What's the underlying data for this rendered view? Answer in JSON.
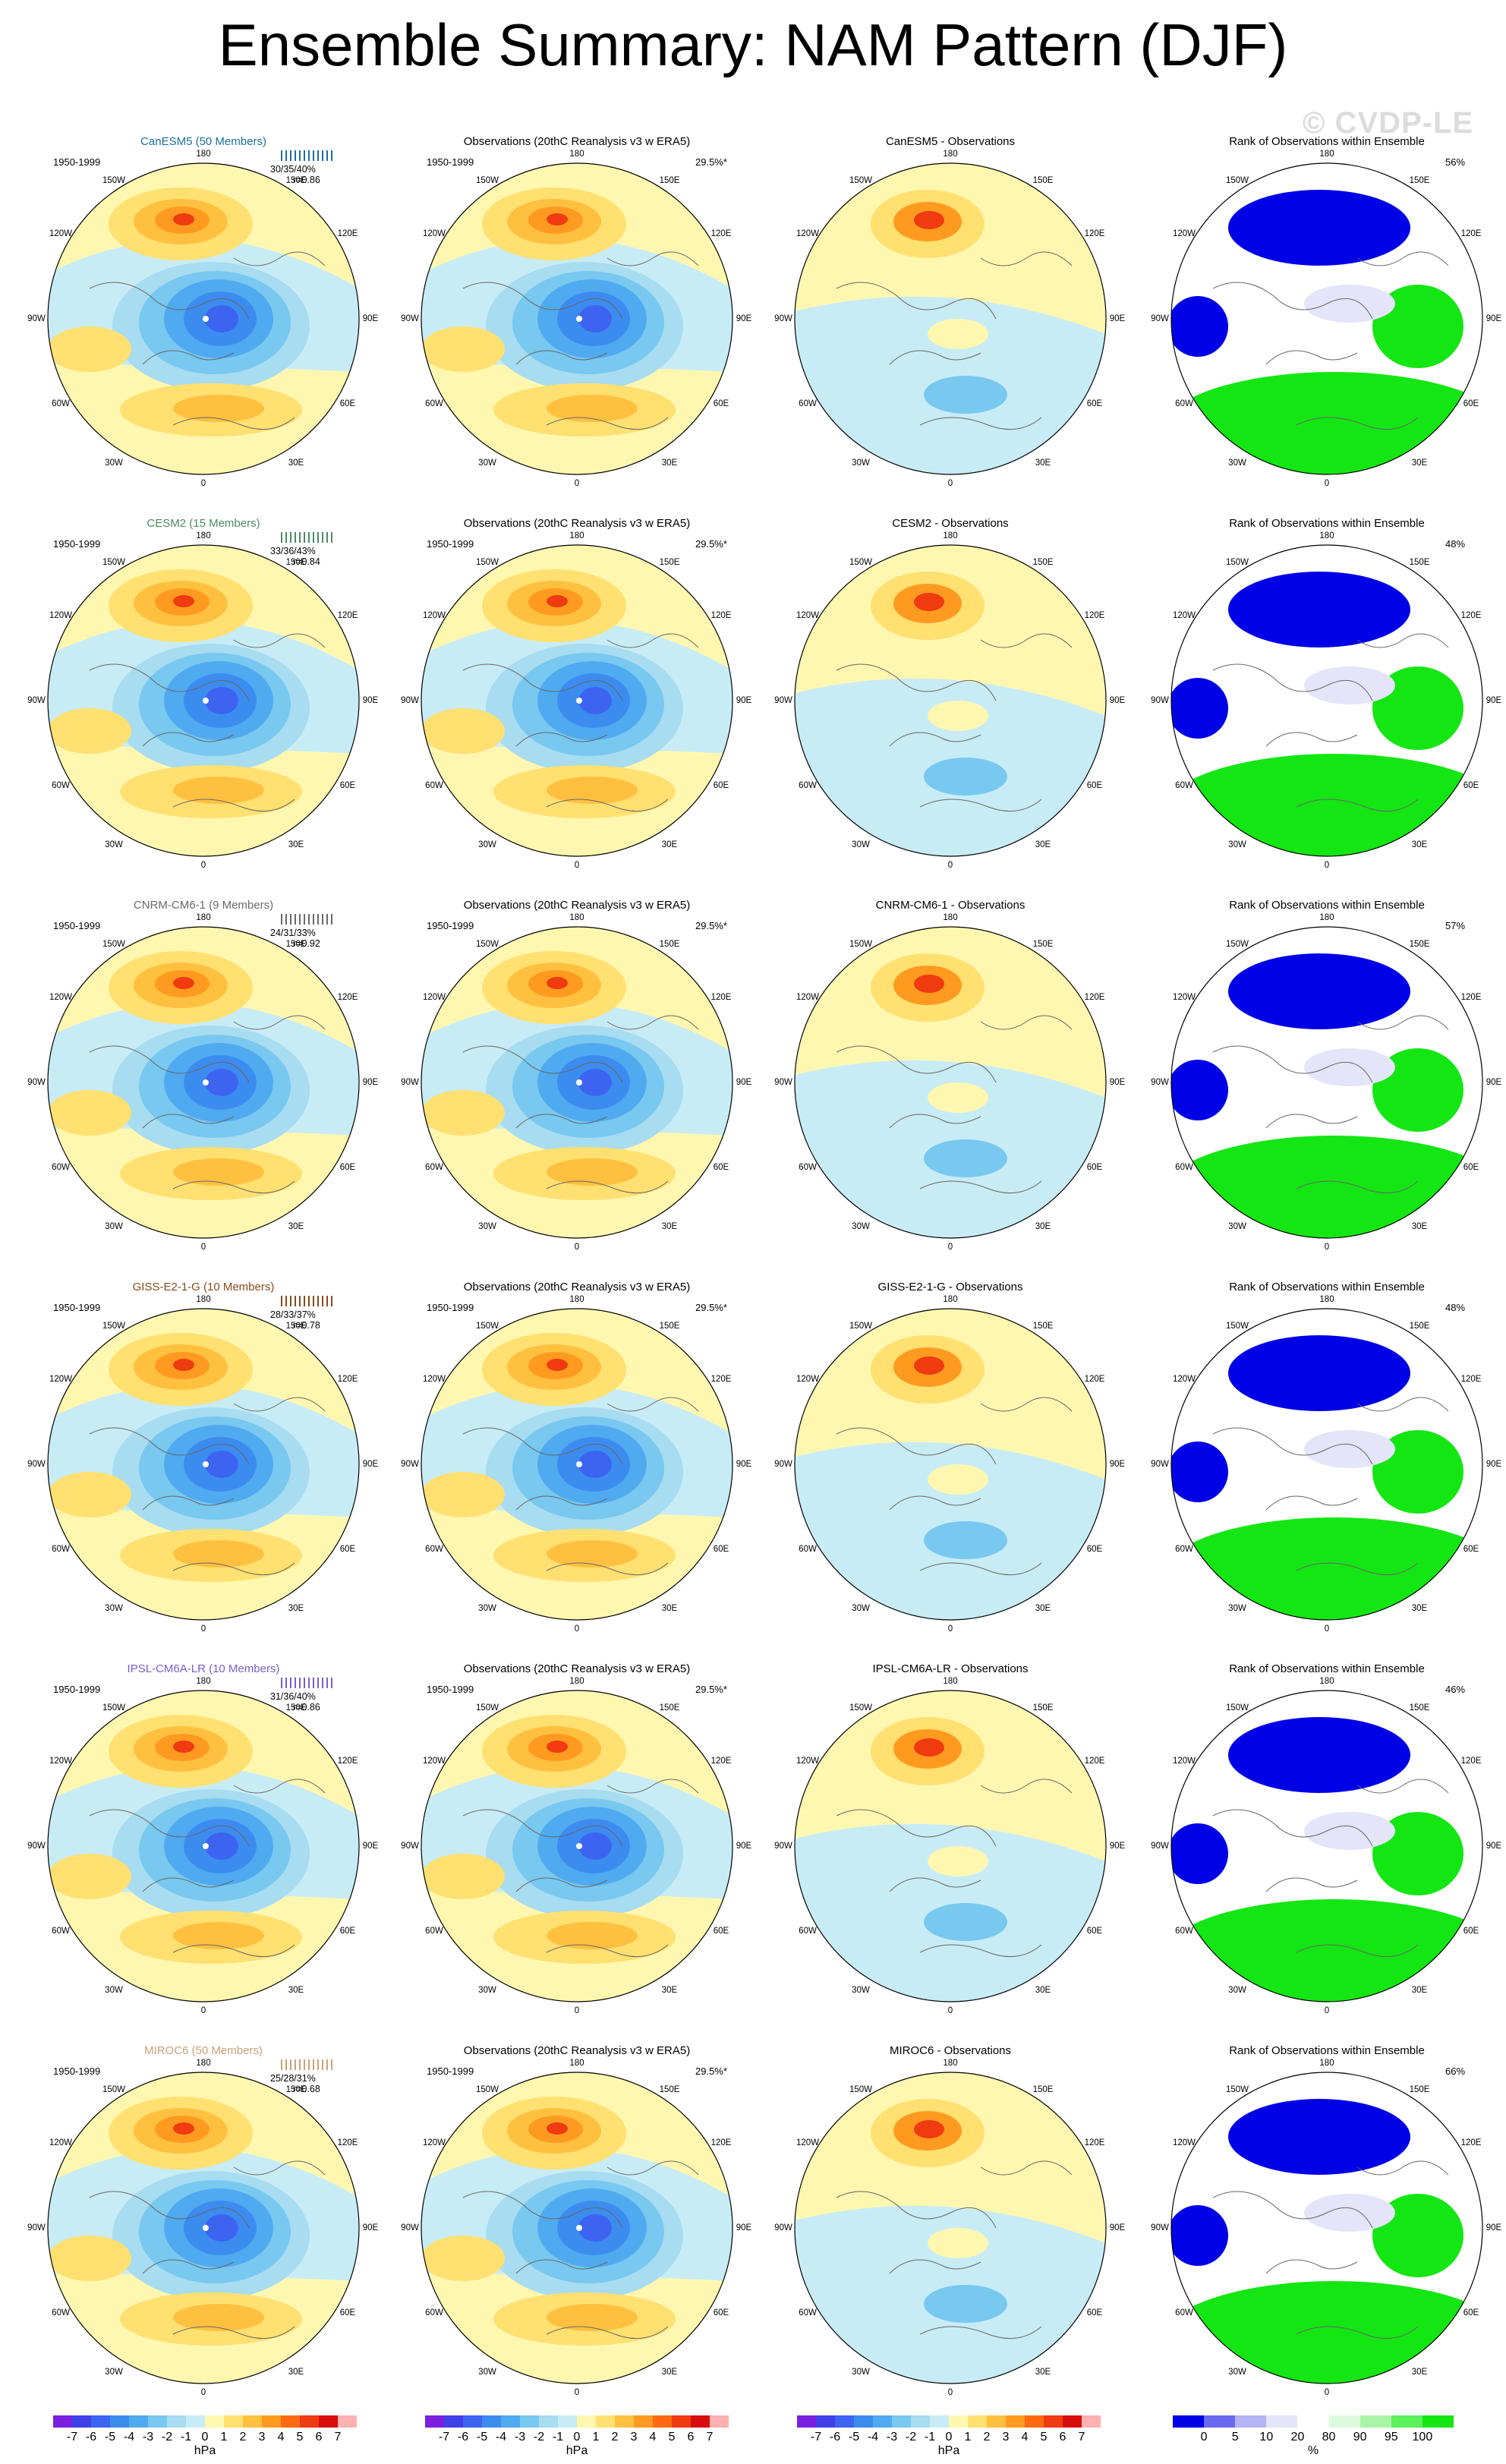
{
  "title": "Ensemble Summary: NAM Pattern (DJF)",
  "watermark": "© CVDP-LE",
  "period": "1950-1999",
  "obs_title": "Observations (20thC Reanalysis v3 w ERA5)",
  "obs_pct": "29.5%*",
  "rank_title": "Rank of Observations within Ensemble",
  "lon_labels": {
    "top": "180",
    "bottom": "0",
    "upper_left": "150W",
    "upper_right": "150E",
    "left_upper": "120W",
    "right_upper": "120E",
    "left": "90W",
    "right": "90E",
    "left_lower": "60W",
    "right_lower": "60E",
    "lower_left": "30W",
    "lower_right": "30E"
  },
  "colors": {
    "title_canesm5": "#1e6fa0",
    "title_cesm2": "#4c8a64",
    "title_cnrm": "#6a6a6a",
    "title_giss": "#8b4a1a",
    "title_ipsl": "#7a5fd0",
    "title_miroc": "#c9a27a"
  },
  "rows": [
    {
      "model": "CanESM5 (50 Members)",
      "diff_title": "CanESM5 - Observations",
      "stats": "30/35/40%",
      "r": "r=0.86",
      "rank_pct": "56%",
      "color_key": "title_canesm5"
    },
    {
      "model": "CESM2 (15 Members)",
      "diff_title": "CESM2 - Observations",
      "stats": "33/36/43%",
      "r": "r=0.84",
      "rank_pct": "48%",
      "color_key": "title_cesm2"
    },
    {
      "model": "CNRM-CM6-1 (9 Members)",
      "diff_title": "CNRM-CM6-1 - Observations",
      "stats": "24/31/33%",
      "r": "r=0.92",
      "rank_pct": "57%",
      "color_key": "title_cnrm"
    },
    {
      "model": "GISS-E2-1-G (10 Members)",
      "diff_title": "GISS-E2-1-G - Observations",
      "stats": "28/33/37%",
      "r": "r=0.78",
      "rank_pct": "48%",
      "color_key": "title_giss"
    },
    {
      "model": "IPSL-CM6A-LR (10 Members)",
      "diff_title": "IPSL-CM6A-LR - Observations",
      "stats": "31/36/40%",
      "r": "r=0.86",
      "rank_pct": "46%",
      "color_key": "title_ipsl"
    },
    {
      "model": "MIROC6 (50 Members)",
      "diff_title": "MIROC6 - Observations",
      "stats": "25/28/31%",
      "r": "r=0.68",
      "rank_pct": "66%",
      "color_key": "title_miroc"
    }
  ],
  "colorbar_hpa": {
    "ticks": [
      "-7",
      "-6",
      "-5",
      "-4",
      "-3",
      "-2",
      "-1",
      "0",
      "1",
      "2",
      "3",
      "4",
      "5",
      "6",
      "7"
    ],
    "unit": "hPa",
    "colors": [
      "#7b20e0",
      "#4040e8",
      "#3c64f0",
      "#3c8cf0",
      "#50aaf0",
      "#78c8f0",
      "#a8dcf0",
      "#c8ecf6",
      "#fff7b0",
      "#ffe070",
      "#ffc040",
      "#ff9a20",
      "#ff6a10",
      "#f03a10",
      "#d80c0c",
      "#ffb0b0"
    ]
  },
  "colorbar_rank": {
    "ticks": [
      "0",
      "5",
      "10",
      "20",
      "80",
      "90",
      "95",
      "100"
    ],
    "unit": "%",
    "colors": [
      "#0000e6",
      "#6a6af0",
      "#b4b4f5",
      "#e4e4fa",
      "#ffffff",
      "#dcfadc",
      "#a8f5a8",
      "#5cf05c",
      "#14e614"
    ]
  }
}
